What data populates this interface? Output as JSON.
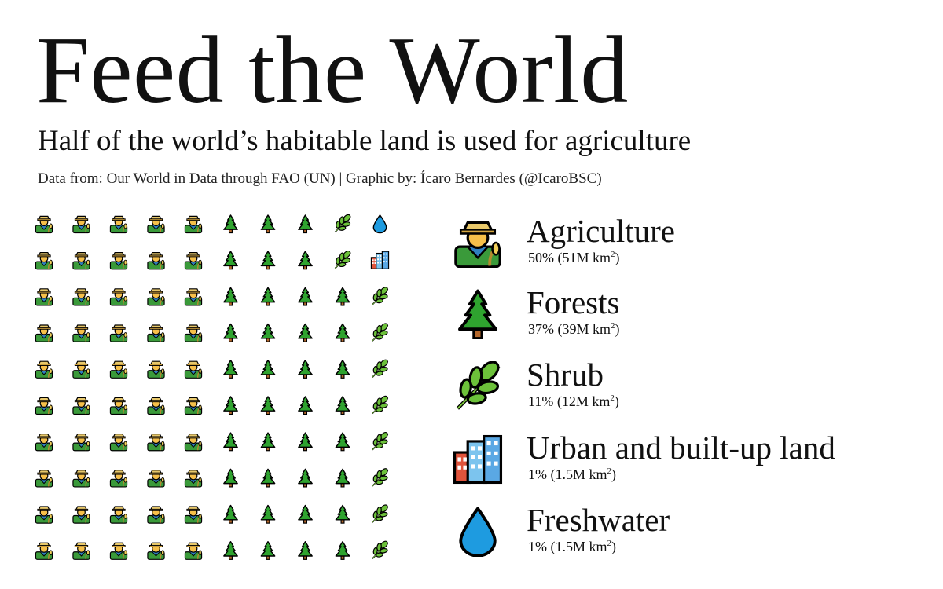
{
  "header": {
    "title": "Feed the World",
    "subtitle": "Half of the world’s habitable land is used for agriculture",
    "credits": "Data from: Our World in Data through FAO (UN) | Graphic by: Ícaro Bernardes (@IcaroBSC)"
  },
  "legend": [
    {
      "key": "agriculture",
      "label": "Agriculture",
      "value_text": "50% (51M km",
      "icon": "farmer-icon"
    },
    {
      "key": "forests",
      "label": "Forests",
      "value_text": "37% (39M km",
      "icon": "tree-icon"
    },
    {
      "key": "shrub",
      "label": "Shrub",
      "value_text": "11% (12M km",
      "icon": "leaf-icon"
    },
    {
      "key": "urban",
      "label": "Urban and built-up land",
      "value_text": "1% (1.5M km",
      "icon": "buildings-icon"
    },
    {
      "key": "freshwater",
      "label": "Freshwater",
      "value_text": "1% (1.5M km",
      "icon": "droplet-icon"
    }
  ],
  "legend_unit_suffix": ")",
  "legend_unit_sup": "2",
  "chart_data": {
    "type": "waffle",
    "rows": 10,
    "cols": 10,
    "categories": [
      "Agriculture",
      "Forests",
      "Shrub",
      "Urban and built-up land",
      "Freshwater"
    ],
    "values": [
      50,
      37,
      11,
      1,
      1
    ],
    "areas_million_km2": [
      51,
      39,
      12,
      1.5,
      1.5
    ],
    "column_units": [
      [
        "agriculture",
        "agriculture",
        "agriculture",
        "agriculture",
        "agriculture",
        "agriculture",
        "agriculture",
        "agriculture",
        "agriculture",
        "agriculture"
      ],
      [
        "agriculture",
        "agriculture",
        "agriculture",
        "agriculture",
        "agriculture",
        "agriculture",
        "agriculture",
        "agriculture",
        "agriculture",
        "agriculture"
      ],
      [
        "agriculture",
        "agriculture",
        "agriculture",
        "agriculture",
        "agriculture",
        "agriculture",
        "agriculture",
        "agriculture",
        "agriculture",
        "agriculture"
      ],
      [
        "agriculture",
        "agriculture",
        "agriculture",
        "agriculture",
        "agriculture",
        "agriculture",
        "agriculture",
        "agriculture",
        "agriculture",
        "agriculture"
      ],
      [
        "agriculture",
        "agriculture",
        "agriculture",
        "agriculture",
        "agriculture",
        "agriculture",
        "agriculture",
        "agriculture",
        "agriculture",
        "agriculture"
      ],
      [
        "forests",
        "forests",
        "forests",
        "forests",
        "forests",
        "forests",
        "forests",
        "forests",
        "forests",
        "forests"
      ],
      [
        "forests",
        "forests",
        "forests",
        "forests",
        "forests",
        "forests",
        "forests",
        "forests",
        "forests",
        "forests"
      ],
      [
        "forests",
        "forests",
        "forests",
        "forests",
        "forests",
        "forests",
        "forests",
        "forests",
        "forests",
        "forests"
      ],
      [
        "shrub",
        "shrub",
        "forests",
        "forests",
        "forests",
        "forests",
        "forests",
        "forests",
        "forests",
        "forests"
      ],
      [
        "freshwater",
        "urban",
        "shrub",
        "shrub",
        "shrub",
        "shrub",
        "shrub",
        "shrub",
        "shrub",
        "shrub"
      ]
    ],
    "colors": {
      "agriculture": "#2e8b2e",
      "forests": "#1f7a1f",
      "shrub": "#5cb82e",
      "urban": "#5a9fd4",
      "freshwater": "#1e9be0"
    }
  }
}
